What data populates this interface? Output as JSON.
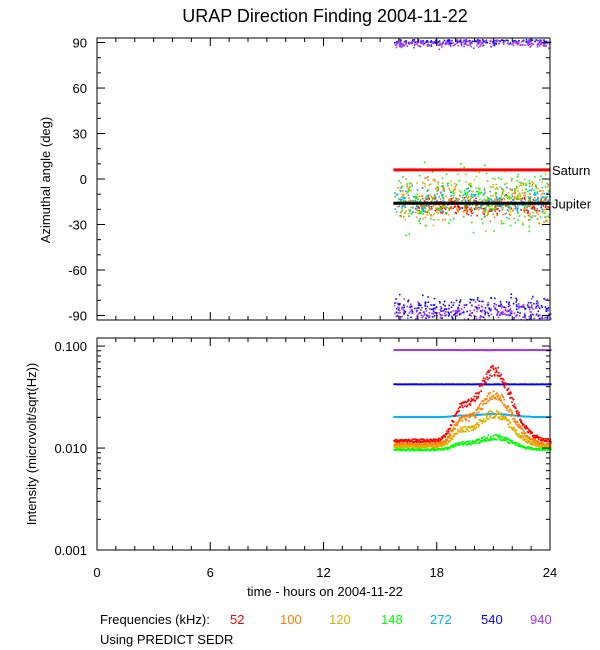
{
  "chart_data": [
    {
      "type": "scatter",
      "title": "URAP Direction Finding  2004-11-22",
      "xlabel": "",
      "ylabel": "Azimuthal angle (deg)",
      "xlim": [
        0,
        24
      ],
      "ylim": [
        -93,
        93
      ],
      "yticks": [
        -90,
        -60,
        -30,
        0,
        30,
        60,
        90
      ],
      "ytick_labels": [
        "-90",
        "-60",
        "-30",
        "0",
        "30",
        "60",
        "90"
      ],
      "grid": false,
      "reference_lines": [
        {
          "name": "Saturn",
          "y": 6,
          "x_range": [
            15.7,
            24
          ],
          "color": "#ff0000"
        },
        {
          "name": "Jupiter",
          "y": -16,
          "x_range": [
            15.7,
            24
          ],
          "color": "#000000"
        }
      ],
      "series": [
        {
          "name": "52",
          "color": "#ff0000",
          "x_range": [
            16.8,
            24
          ],
          "center": -17,
          "spread": 4
        },
        {
          "name": "100",
          "color": "#ff8000",
          "x_range": [
            15.9,
            24
          ],
          "center": -14,
          "spread": 9
        },
        {
          "name": "120",
          "color": "#e0b000",
          "x_range": [
            15.9,
            24
          ],
          "center": -12,
          "spread": 11
        },
        {
          "name": "148",
          "color": "#00ff00",
          "x_range": [
            15.7,
            24
          ],
          "center": -12,
          "spread": 14
        },
        {
          "name": "272",
          "color": "#00b0ff",
          "x_range": [
            15.7,
            24
          ],
          "center": -14,
          "spread": 6
        },
        {
          "name": "540",
          "color": "#0000ff",
          "x_range": [
            15.7,
            24
          ],
          "center": 92,
          "spread": 2
        },
        {
          "name": "540",
          "color": "#0000ff",
          "x_range": [
            15.7,
            24
          ],
          "center": -85,
          "spread": 6
        },
        {
          "name": "940",
          "color": "#9933ff",
          "x_range": [
            15.7,
            24
          ],
          "center": 90,
          "spread": 2
        },
        {
          "name": "940",
          "color": "#9933ff",
          "x_range": [
            15.7,
            24
          ],
          "center": -87,
          "spread": 5
        }
      ]
    },
    {
      "type": "scatter",
      "title": "",
      "xlabel": "time - hours on 2004-11-22",
      "ylabel": "Intensity (microvolt/sqrt(Hz))",
      "xlim": [
        0,
        24
      ],
      "ylim": [
        0.001,
        0.12
      ],
      "log_y": true,
      "xticks": [
        0,
        6,
        12,
        18,
        24
      ],
      "xtick_labels": [
        "0",
        "6",
        "12",
        "18",
        "24"
      ],
      "yticks": [
        0.001,
        0.01,
        0.1
      ],
      "ytick_labels": [
        "0.001",
        "0.010",
        "0.100"
      ],
      "grid": false,
      "series": [
        {
          "name": "940",
          "color": "#9933ff",
          "x_range": [
            15.7,
            24
          ],
          "base": 0.093,
          "peak": 0.093,
          "jitter": 0.003
        },
        {
          "name": "540",
          "color": "#0000ff",
          "x_range": [
            15.7,
            24
          ],
          "base": 0.043,
          "peak": 0.043,
          "jitter": 0.002
        },
        {
          "name": "272",
          "color": "#00b0ff",
          "x_range": [
            15.7,
            24
          ],
          "base": 0.0205,
          "peak": 0.022,
          "jitter": 0.003
        },
        {
          "name": "52",
          "color": "#ff0000",
          "x_range": [
            15.7,
            24
          ],
          "base": 0.012,
          "peak": 0.058,
          "jitter": 0.08
        },
        {
          "name": "100",
          "color": "#ff8000",
          "x_range": [
            15.7,
            24
          ],
          "base": 0.011,
          "peak": 0.034,
          "jitter": 0.07
        },
        {
          "name": "120",
          "color": "#e0b000",
          "x_range": [
            15.7,
            24
          ],
          "base": 0.0105,
          "peak": 0.022,
          "jitter": 0.06
        },
        {
          "name": "148",
          "color": "#00ff00",
          "x_range": [
            15.7,
            24
          ],
          "base": 0.0098,
          "peak": 0.013,
          "jitter": 0.04
        }
      ]
    }
  ],
  "legend": {
    "label": "Frequencies (kHz):",
    "items": [
      {
        "text": "52",
        "color": "#ff0000"
      },
      {
        "text": "100",
        "color": "#ff8000"
      },
      {
        "text": "120",
        "color": "#e0b000"
      },
      {
        "text": "148",
        "color": "#00ff00"
      },
      {
        "text": "272",
        "color": "#00b0ff"
      },
      {
        "text": "540",
        "color": "#0000ff"
      },
      {
        "text": "940",
        "color": "#9933ff"
      }
    ]
  },
  "note": "Using PREDICT SEDR"
}
